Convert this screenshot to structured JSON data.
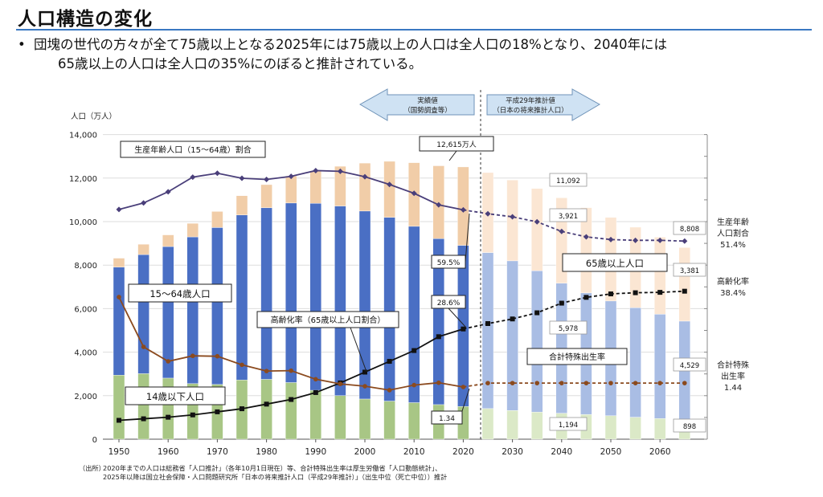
{
  "slide": {
    "title": "人口構造の変化",
    "bullet_line1": "団塊の世代の方々が全て75歳以上となる2025年には75歳以上の人口は全人口の18%となり、2040年には",
    "bullet_line2": "65歳以上の人口は全人口の35%にのぼると推計されている。"
  },
  "source": {
    "label": "（出所）",
    "line1": "2020年までの人口は総務省「人口推計」（各年10月1日現在）等、合計特殊出生率は厚生労働省「人口動態統計」、",
    "line2": "2025年以降は国立社会保障・人口問題研究所「日本の将来推計人口（平成29年推計）」（出生中位（死亡中位））推計"
  },
  "chart_data": {
    "type": "bar",
    "ylabel": "人口（万人）",
    "ylim": [
      0,
      14000
    ],
    "yticks": [
      "0",
      "2,000",
      "4,000",
      "6,000",
      "8,000",
      "10,000",
      "12,000",
      "14,000"
    ],
    "xticks": [
      "1950",
      "1960",
      "1970",
      "1980",
      "1990",
      "2000",
      "2010",
      "2020",
      "2030",
      "2040",
      "2050",
      "2060"
    ],
    "categories": [
      1950,
      1955,
      1960,
      1965,
      1970,
      1975,
      1980,
      1985,
      1990,
      1995,
      2000,
      2005,
      2010,
      2015,
      2020,
      2025,
      2030,
      2035,
      2040,
      2045,
      2050,
      2055,
      2060,
      2065
    ],
    "projection_start": 2025,
    "stacked_series": [
      {
        "name": "14歳以下人口",
        "values": [
          2943,
          3012,
          2807,
          2553,
          2515,
          2722,
          2751,
          2603,
          2249,
          2001,
          1847,
          1752,
          1680,
          1589,
          1503,
          1407,
          1321,
          1246,
          1194,
          1138,
          1077,
          1012,
          951,
          898
        ]
      },
      {
        "name": "15～64歳人口",
        "values": [
          4966,
          5473,
          6047,
          6744,
          7212,
          7581,
          7883,
          8251,
          8590,
          8716,
          8638,
          8442,
          8103,
          7629,
          7406,
          7170,
          6875,
          6494,
          5978,
          5584,
          5275,
          5028,
          4793,
          4529
        ]
      },
      {
        "name": "65歳以上人口",
        "values": [
          411,
          475,
          535,
          624,
          739,
          887,
          1065,
          1247,
          1493,
          1826,
          2204,
          2576,
          2925,
          3347,
          3603,
          3677,
          3716,
          3782,
          3921,
          3919,
          3841,
          3704,
          3540,
          3381
        ]
      }
    ],
    "line_series": [
      {
        "name": "生産年齢人口（15～64歳）割合",
        "axis": "ratio",
        "values": [
          59.6,
          61.3,
          64.2,
          68.0,
          69.0,
          67.7,
          67.4,
          68.2,
          69.7,
          69.5,
          68.1,
          66.1,
          63.8,
          60.8,
          59.5,
          58.5,
          57.7,
          56.4,
          53.9,
          52.5,
          51.8,
          51.6,
          51.6,
          51.4
        ]
      },
      {
        "name": "高齢化率（65歳以上人口割合）",
        "axis": "ratio",
        "values": [
          4.9,
          5.3,
          5.7,
          6.3,
          7.1,
          7.9,
          9.1,
          10.3,
          12.1,
          14.6,
          17.4,
          20.2,
          23.0,
          26.6,
          28.6,
          30.0,
          31.2,
          32.8,
          35.3,
          36.8,
          37.7,
          38.0,
          38.1,
          38.4
        ]
      },
      {
        "name": "合計特殊出生率",
        "axis": "tfr",
        "values": [
          3.65,
          2.37,
          2.0,
          2.14,
          2.13,
          1.91,
          1.75,
          1.76,
          1.54,
          1.42,
          1.36,
          1.26,
          1.39,
          1.45,
          1.34,
          1.44,
          1.44,
          1.44,
          1.44,
          1.44,
          1.44,
          1.44,
          1.44,
          1.44
        ]
      }
    ],
    "colors": {
      "u14_actual": "#a8c685",
      "u14_proj": "#dbe9c7",
      "p1564_actual": "#4a6fc4",
      "p1564_proj": "#a9bde4",
      "o65_actual": "#f1cda8",
      "o65_proj": "#fbe6d3",
      "working_ratio": "#4a3f7a",
      "aging_rate": "#111111",
      "tfr": "#8b4a1e"
    },
    "arrows": {
      "left_line1": "実績値",
      "left_line2": "（国勢調査等）",
      "right_line1": "平成29年推計値",
      "right_line2": "（日本の将来推計人口）"
    },
    "annotations": {
      "working_ratio": "生産年齢人口（15～64歳）割合",
      "p1564": "15～64歳人口",
      "aging": "高齢化率（65歳以上人口割合）",
      "u14": "14歳以下人口",
      "o65": "65歳以上人口",
      "tfr": "合計特殊出生率",
      "total_2015": "12,615万人"
    },
    "value_labels": {
      "ratio_2020": "59.5%",
      "aging_2020": "28.6%",
      "tfr_2020": "1.34",
      "total_2040": "11,092",
      "o65_2040": "3,921",
      "p1564_2040": "5,978",
      "u14_2040": "1,194",
      "total_2065": "8,808",
      "o65_2065": "3,381",
      "p1564_2065": "4,529",
      "u14_2065": "898"
    },
    "right_labels": {
      "working_l1": "生産年齢",
      "working_l2": "人口割合",
      "working_val": "51.4%",
      "aging_l1": "高齢化率",
      "aging_val": "38.4%",
      "tfr_l1": "合計特殊",
      "tfr_l2": "出生率",
      "tfr_val": "1.44"
    }
  }
}
